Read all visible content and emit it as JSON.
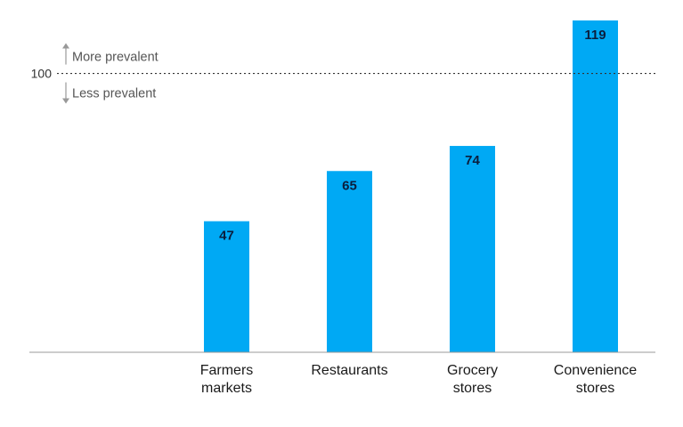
{
  "chart_data": {
    "type": "bar",
    "categories": [
      [
        "Farmers",
        "markets"
      ],
      [
        "Restaurants"
      ],
      [
        "Grocery",
        "stores"
      ],
      [
        "Convenience",
        "stores"
      ]
    ],
    "values": [
      47,
      65,
      74,
      119
    ],
    "value_labels": [
      "47",
      "65",
      "74",
      "119"
    ],
    "ylim": [
      0,
      119
    ],
    "reference_line": {
      "value": 100,
      "tick_label": "100",
      "above_label": "More prevalent",
      "below_label": "Less prevalent"
    },
    "colors": {
      "bar": "#00a9f4",
      "axis": "#999999",
      "reference": "#333333"
    },
    "grid": false
  }
}
